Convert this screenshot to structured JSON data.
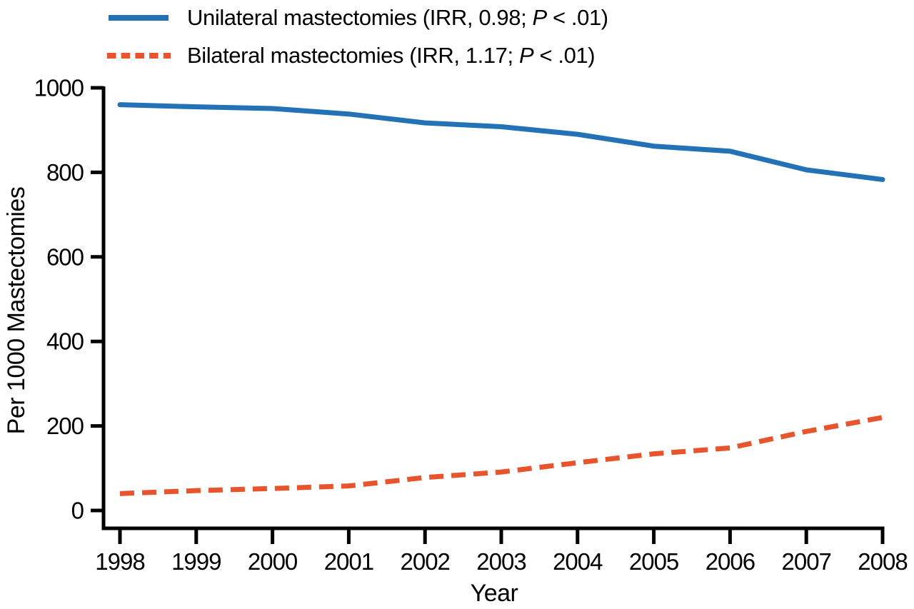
{
  "chart_data": {
    "type": "line",
    "title": "",
    "xlabel": "Year",
    "ylabel": "Per 1000 Mastectomies",
    "x": [
      1998,
      1999,
      2000,
      2001,
      2002,
      2003,
      2004,
      2005,
      2006,
      2007,
      2008
    ],
    "xticks": [
      1998,
      1999,
      2000,
      2001,
      2002,
      2003,
      2004,
      2005,
      2006,
      2007,
      2008
    ],
    "yticks": [
      0,
      200,
      400,
      600,
      800,
      1000
    ],
    "xlim": [
      1998,
      2008
    ],
    "ylim": [
      0,
      1000
    ],
    "grid": false,
    "legend_position": "top-left",
    "axis_color": "#000000",
    "series": [
      {
        "name": "Unilateral mastectomies",
        "irr": "0.98",
        "p_value": "<.01",
        "color": "#2272b5",
        "line_style": "solid",
        "values": [
          960,
          955,
          951,
          938,
          917,
          908,
          890,
          862,
          850,
          806,
          783
        ],
        "legend": {
          "pre": "Unilateral mastectomies (IRR, 0.98; ",
          "italic": "P",
          "post": " < .01)"
        }
      },
      {
        "name": "Bilateral mastectomies",
        "irr": "1.17",
        "p_value": "<.01",
        "color": "#e8542c",
        "line_style": "dashed",
        "values": [
          40,
          47,
          52,
          58,
          78,
          91,
          113,
          134,
          148,
          187,
          220
        ],
        "legend": {
          "pre": "Bilateral mastectomies (IRR, 1.17; ",
          "italic": "P",
          "post": " < .01)"
        }
      }
    ]
  }
}
